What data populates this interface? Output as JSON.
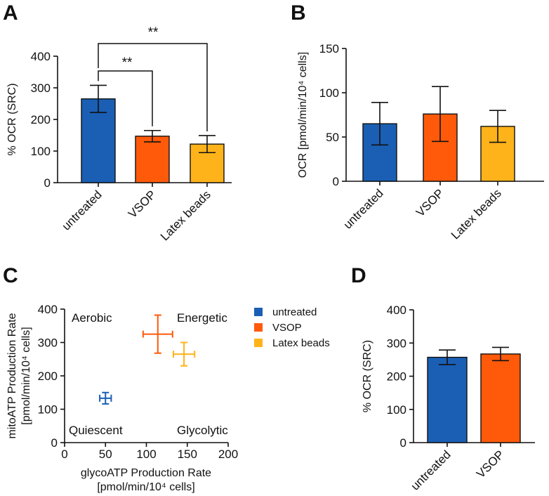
{
  "colors": {
    "untreated": "#1a5fb4",
    "vsop": "#ff5a0a",
    "latex": "#ffb31a"
  },
  "chart_data": [
    {
      "panel": "A",
      "type": "bar",
      "categories": [
        "untreated",
        "VSOP",
        "Latex beads"
      ],
      "values": [
        265,
        147,
        122
      ],
      "errors": [
        43,
        18,
        27
      ],
      "ylabel": "% OCR  (SRC)",
      "ylim": [
        0,
        400
      ],
      "yticks": [
        "0",
        "100",
        "200",
        "300",
        "400"
      ],
      "significance": [
        {
          "from": "untreated",
          "to": "VSOP",
          "label": "**"
        },
        {
          "from": "untreated",
          "to": "Latex beads",
          "label": "**"
        }
      ]
    },
    {
      "panel": "B",
      "type": "bar",
      "categories": [
        "untreated",
        "VSOP",
        "Latex beads"
      ],
      "values": [
        65,
        76,
        62
      ],
      "errors": [
        24,
        31,
        18
      ],
      "ylabel": "OCR [pmol/min/10⁴ cells]",
      "ylim": [
        0,
        150
      ],
      "yticks": [
        "0",
        "50",
        "100",
        "150"
      ]
    },
    {
      "panel": "C",
      "type": "scatter",
      "series": [
        {
          "name": "untreated",
          "x": 50,
          "y": 133,
          "xerr": 7,
          "yerr": 17
        },
        {
          "name": "VSOP",
          "x": 114,
          "y": 325,
          "xerr": 18,
          "yerr": 57
        },
        {
          "name": "Latex beads",
          "x": 146,
          "y": 265,
          "xerr": 13,
          "yerr": 35
        }
      ],
      "xlabel": [
        "glycoATP Production Rate",
        "[pmol/min/10⁴ cells]"
      ],
      "ylabel": [
        "mitoATP Production Rate",
        "[pmol/min/10⁴ cells]"
      ],
      "xlim": [
        0,
        200
      ],
      "ylim": [
        0,
        400
      ],
      "xticks": [
        "0",
        "50",
        "100",
        "150",
        "200"
      ],
      "yticks": [
        "0",
        "100",
        "200",
        "300",
        "400"
      ],
      "regions": {
        "aerobic": "Aerobic",
        "energetic": "Energetic",
        "quiescent": "Quiescent",
        "glycolytic": "Glycolytic"
      },
      "legend": [
        "untreated",
        "VSOP",
        "Latex beads"
      ]
    },
    {
      "panel": "D",
      "type": "bar",
      "categories": [
        "untreated",
        "VSOP"
      ],
      "values": [
        257,
        267
      ],
      "errors": [
        22,
        20
      ],
      "ylabel": "% OCR  (SRC)",
      "ylim": [
        0,
        400
      ],
      "yticks": [
        "0",
        "100",
        "200",
        "300",
        "400"
      ]
    }
  ],
  "panels": {
    "a": "A",
    "b": "B",
    "c": "C",
    "d": "D"
  }
}
